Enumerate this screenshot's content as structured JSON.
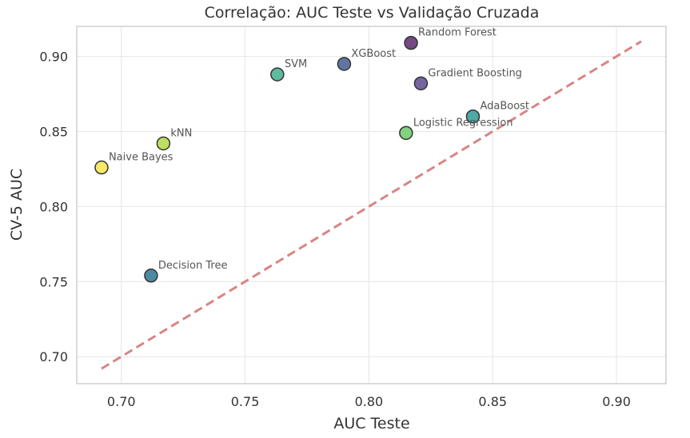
{
  "chart_data": {
    "type": "scatter",
    "title": "Correlação: AUC Teste vs Validação Cruzada",
    "xlabel": "AUC Teste",
    "ylabel": "CV-5 AUC",
    "xlim": [
      0.682,
      0.92
    ],
    "ylim": [
      0.682,
      0.92
    ],
    "x_ticks": [
      "0.70",
      "0.75",
      "0.80",
      "0.85",
      "0.90"
    ],
    "y_ticks": [
      "0.70",
      "0.75",
      "0.80",
      "0.85",
      "0.90"
    ],
    "grid": true,
    "reference_line": {
      "style": "dashed",
      "color": "#d98583",
      "x": [
        0.692,
        0.91
      ],
      "y": [
        0.692,
        0.91
      ]
    },
    "points": [
      {
        "label": "Random Forest",
        "x": 0.817,
        "y": 0.909,
        "color": "#5d2a6e"
      },
      {
        "label": "XGBoost",
        "x": 0.79,
        "y": 0.895,
        "color": "#445d8f"
      },
      {
        "label": "SVM",
        "x": 0.763,
        "y": 0.888,
        "color": "#3fb08c"
      },
      {
        "label": "Gradient Boosting",
        "x": 0.821,
        "y": 0.882,
        "color": "#5f4a8f"
      },
      {
        "label": "AdaBoost",
        "x": 0.842,
        "y": 0.86,
        "color": "#2f9a98"
      },
      {
        "label": "Logistic Regression",
        "x": 0.815,
        "y": 0.849,
        "color": "#6cca6a"
      },
      {
        "label": "kNN",
        "x": 0.717,
        "y": 0.842,
        "color": "#b1d843"
      },
      {
        "label": "Naive Bayes",
        "x": 0.692,
        "y": 0.826,
        "color": "#f8e54a"
      },
      {
        "label": "Decision Tree",
        "x": 0.712,
        "y": 0.754,
        "color": "#2e7693"
      }
    ]
  }
}
